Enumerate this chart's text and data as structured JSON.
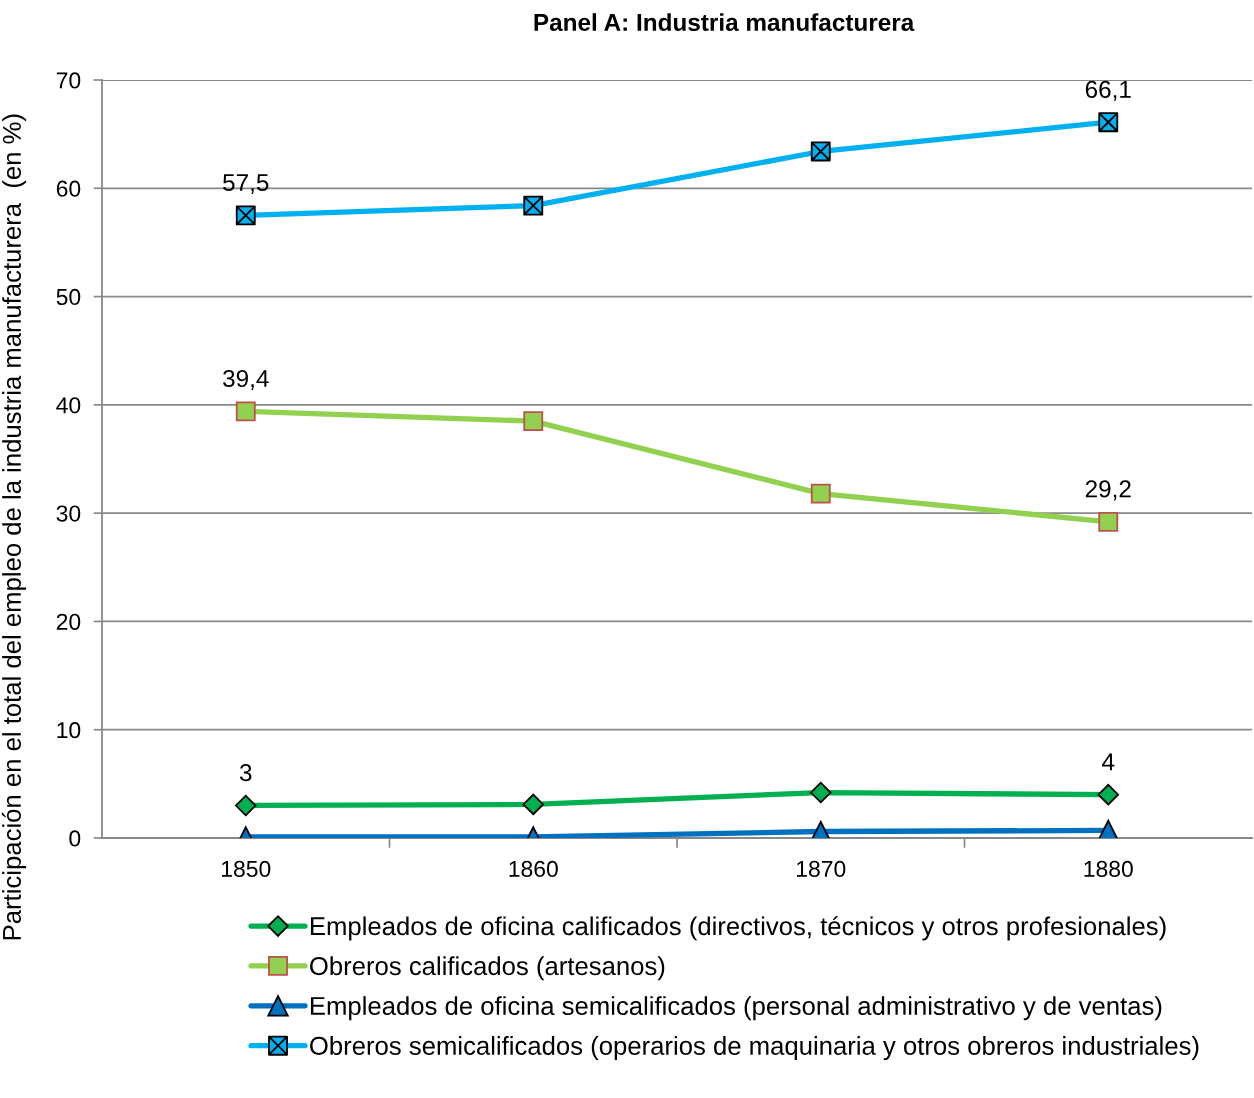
{
  "chart_data": {
    "type": "line",
    "title": "Panel A: Industria manufacturera",
    "ylabel": "Participación en el total del empleo de la industria manufacturera  (en %)",
    "categories": [
      "1850",
      "1860",
      "1870",
      "1880"
    ],
    "series": [
      {
        "name": "Empleados de oficina calificados (directivos, técnicos y otros profesionales)",
        "color": "#00b050",
        "marker": "diamond",
        "values": [
          3,
          3.1,
          4.2,
          4
        ],
        "value_labels": [
          "3",
          null,
          null,
          "4"
        ]
      },
      {
        "name": "Obreros calificados (artesanos)",
        "color": "#92d050",
        "marker": "square",
        "values": [
          39.4,
          38.5,
          31.8,
          29.2
        ],
        "value_labels": [
          "39,4",
          null,
          null,
          "29,2"
        ]
      },
      {
        "name": "Empleados de oficina semicalificados (personal administrativo y de ventas)",
        "color": "#0070c0",
        "marker": "triangle",
        "values": [
          0.1,
          0.1,
          0.6,
          0.7
        ]
      },
      {
        "name": "Obreros semicalificados (operarios de maquinaria y otros obreros industriales)",
        "color": "#00b0f0",
        "marker": "cross",
        "values": [
          57.5,
          58.4,
          63.4,
          66.1
        ],
        "value_labels": [
          "57,5",
          null,
          null,
          "66,1"
        ]
      }
    ],
    "ylim": [
      0,
      70
    ],
    "yticks": [
      0,
      10,
      20,
      30,
      40,
      50,
      60,
      70
    ],
    "grid": "y",
    "legend": "bottom",
    "line_style": "solid"
  }
}
